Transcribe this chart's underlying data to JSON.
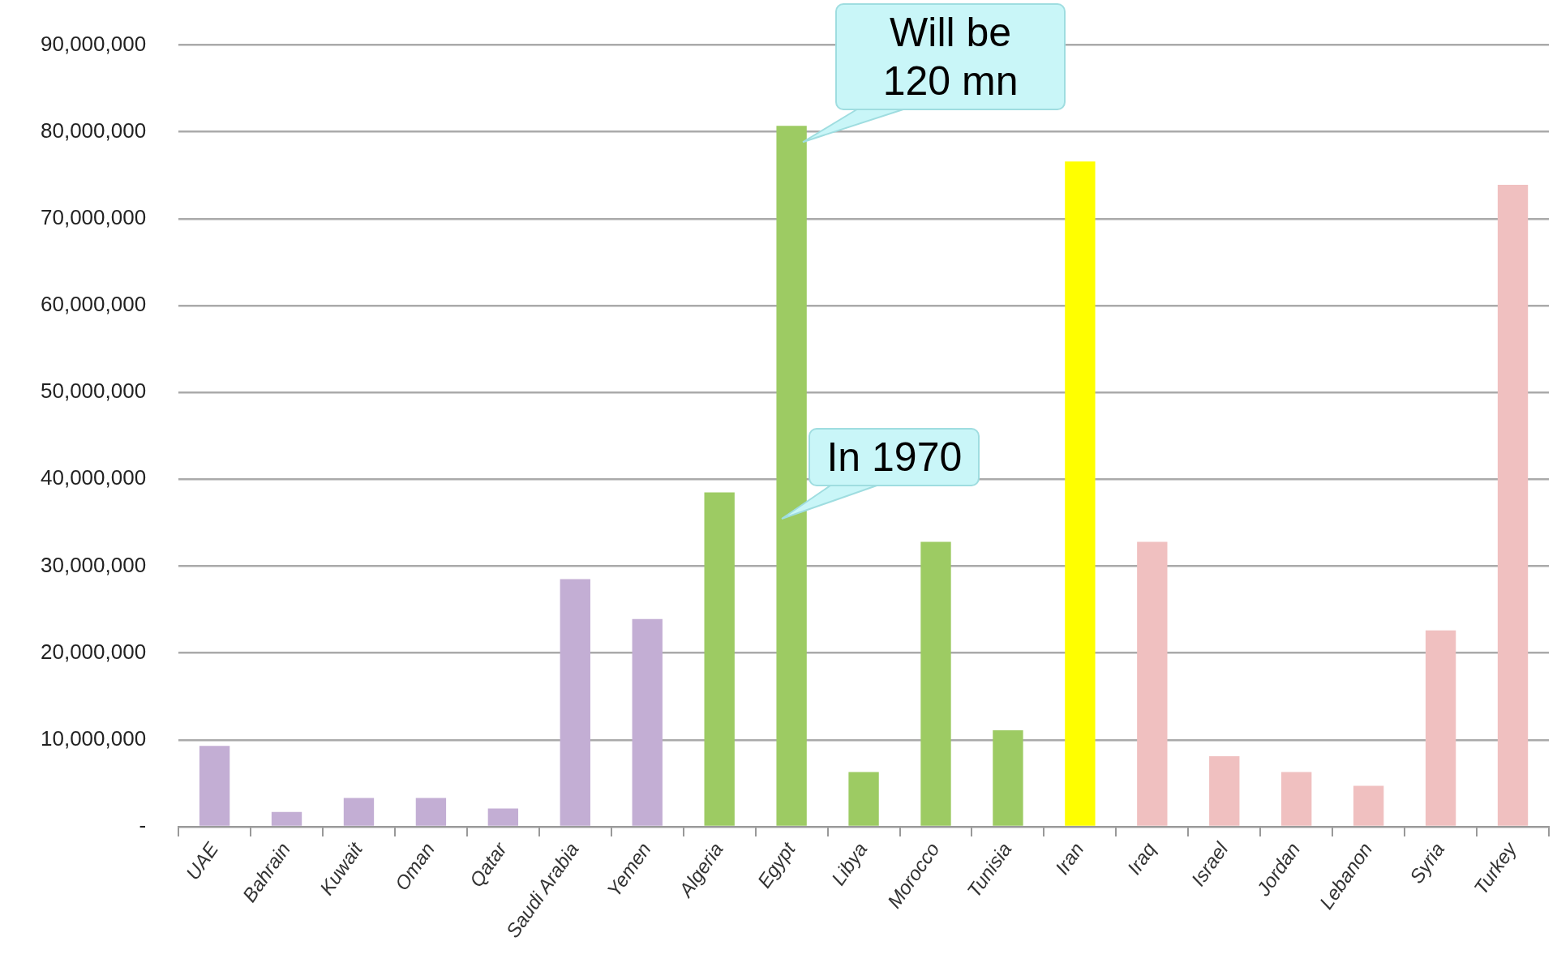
{
  "chart_data": {
    "type": "bar",
    "categories": [
      "UAE",
      "Bahrain",
      "Kuwait",
      "Oman",
      "Qatar",
      "Saudi Arabia",
      "Yemen",
      "Algeria",
      "Egypt",
      "Libya",
      "Morocco",
      "Tunisia",
      "Iran",
      "Iraq",
      "Israel",
      "Jordan",
      "Lebanon",
      "Syria",
      "Turkey"
    ],
    "values": [
      9300000,
      1700000,
      3300000,
      3300000,
      2100000,
      28500000,
      23900000,
      38500000,
      80700000,
      6300000,
      32800000,
      11100000,
      76600000,
      32800000,
      8100000,
      6300000,
      4700000,
      22600000,
      73900000
    ],
    "colors": [
      "#c3aed4",
      "#c3aed4",
      "#c3aed4",
      "#c3aed4",
      "#c3aed4",
      "#c3aed4",
      "#c3aed4",
      "#9dcb63",
      "#9dcb63",
      "#9dcb63",
      "#9dcb63",
      "#9dcb63",
      "#ffff00",
      "#f0c0c0",
      "#f0c0c0",
      "#f0c0c0",
      "#f0c0c0",
      "#f0c0c0",
      "#f0c0c0"
    ],
    "ylim": [
      0,
      90000000
    ],
    "yticks": [
      {
        "value": 0,
        "label": "-"
      },
      {
        "value": 10000000,
        "label": "10,000,000"
      },
      {
        "value": 20000000,
        "label": "20,000,000"
      },
      {
        "value": 30000000,
        "label": "30,000,000"
      },
      {
        "value": 40000000,
        "label": "40,000,000"
      },
      {
        "value": 50000000,
        "label": "50,000,000"
      },
      {
        "value": 60000000,
        "label": "60,000,000"
      },
      {
        "value": 70000000,
        "label": "70,000,000"
      },
      {
        "value": 80000000,
        "label": "80,000,000"
      },
      {
        "value": 90000000,
        "label": "90,000,000"
      }
    ],
    "grid": "y",
    "legend": false,
    "annotations": [
      {
        "text": "Will be 120 mn",
        "x": "Egypt",
        "y": 80700000
      },
      "In 1970"
    ]
  }
}
